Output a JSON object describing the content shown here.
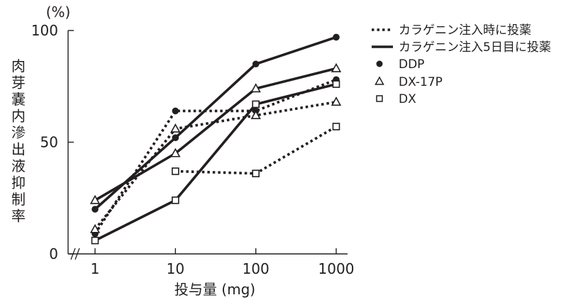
{
  "chart_data": {
    "type": "line",
    "x_scale": "log",
    "x": [
      1,
      10,
      100,
      1000
    ],
    "x_tick_labels": [
      "1",
      "10",
      "100",
      "1000"
    ],
    "ylim": [
      0,
      100
    ],
    "y_ticks": [
      0,
      50,
      100
    ],
    "y_tick_labels": [
      "0",
      "50",
      "100"
    ],
    "y_unit": "(%)",
    "ylabel": "肉芽嚢内滲出液抑制率",
    "xlabel": "投与量 (mg)",
    "line_styles": {
      "dotted": "カラゲニン注入時に投薬",
      "solid": "カラゲニン注入5日目に投薬"
    },
    "markers": {
      "filled-circle": "DDP",
      "open-triangle": "DX-17P",
      "open-square": "DX"
    },
    "series": [
      {
        "timing": "カラゲニン注入時に投薬",
        "drug": "DDP",
        "style": "dotted",
        "marker": "filled-circle",
        "x": [
          1,
          10,
          100,
          1000
        ],
        "values": [
          9,
          64,
          64,
          78
        ]
      },
      {
        "timing": "カラゲニン注入時に投薬",
        "drug": "DX-17P",
        "style": "dotted",
        "marker": "open-triangle",
        "x": [
          1,
          10,
          100,
          1000
        ],
        "values": [
          11,
          56,
          62,
          68
        ]
      },
      {
        "timing": "カラゲニン注入時に投薬",
        "drug": "DX",
        "style": "dotted",
        "marker": "open-square",
        "x": [
          10,
          100,
          1000
        ],
        "values": [
          37,
          36,
          57
        ]
      },
      {
        "timing": "カラゲニン注入5日目に投薬",
        "drug": "DDP",
        "style": "solid",
        "marker": "filled-circle",
        "x": [
          1,
          10,
          100,
          1000
        ],
        "values": [
          20,
          52,
          85,
          97
        ]
      },
      {
        "timing": "カラゲニン注入5日目に投薬",
        "drug": "DX-17P",
        "style": "solid",
        "marker": "open-triangle",
        "x": [
          1,
          10,
          100,
          1000
        ],
        "values": [
          24,
          45,
          74,
          83
        ]
      },
      {
        "timing": "カラゲニン注入5日目に投薬",
        "drug": "DX",
        "style": "solid",
        "marker": "open-square",
        "x": [
          1,
          10,
          100,
          1000
        ],
        "values": [
          6,
          24,
          67,
          76
        ]
      }
    ],
    "legend": [
      {
        "symbol": "dotted-line",
        "label": "カラゲニン注入時に投薬"
      },
      {
        "symbol": "solid-line",
        "label": "カラゲニン注入5日目に投薬"
      },
      {
        "symbol": "filled-circle",
        "label": "DDP"
      },
      {
        "symbol": "open-triangle",
        "label": "DX-17P"
      },
      {
        "symbol": "open-square",
        "label": "DX"
      }
    ],
    "legend_position": "top-right",
    "axis_break": "x-axis between 0 and 1",
    "grid": false,
    "colors": {
      "ink": "#231f20",
      "background": "#ffffff"
    }
  }
}
